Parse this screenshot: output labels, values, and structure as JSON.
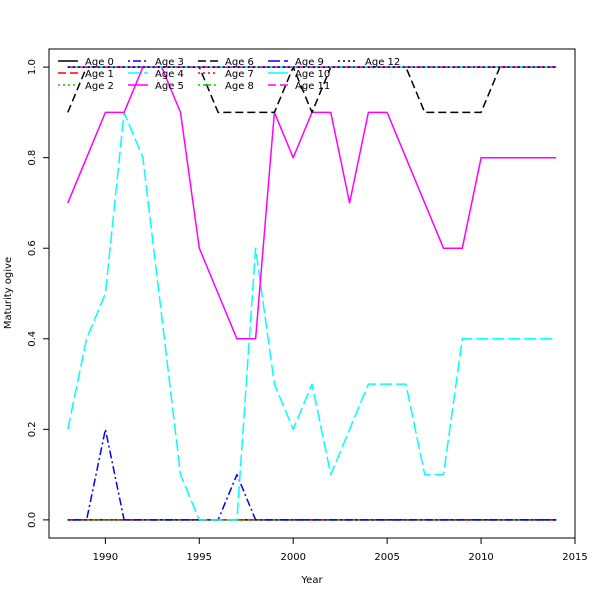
{
  "chart_data": {
    "type": "line",
    "title": "",
    "xlabel": "Year",
    "ylabel": "Maturity ogive",
    "xlim": [
      1987,
      2015
    ],
    "ylim": [
      -0.04,
      1.04
    ],
    "x_ticks": [
      1990,
      1995,
      2000,
      2005,
      2010,
      2015
    ],
    "y_ticks": [
      0.0,
      0.2,
      0.4,
      0.6,
      0.8,
      1.0
    ],
    "legend_position": "top-left",
    "grid": false,
    "x": [
      1988,
      1989,
      1990,
      1991,
      1992,
      1993,
      1994,
      1995,
      1996,
      1997,
      1998,
      1999,
      2000,
      2001,
      2002,
      2003,
      2004,
      2005,
      2006,
      2007,
      2008,
      2009,
      2010,
      2011,
      2012,
      2013,
      2014
    ],
    "series": [
      {
        "name": "Age 0",
        "color": "#000000",
        "dash": "solid",
        "values": [
          0,
          0,
          0,
          0,
          0,
          0,
          0,
          0,
          0,
          0,
          0,
          0,
          0,
          0,
          0,
          0,
          0,
          0,
          0,
          0,
          0,
          0,
          0,
          0,
          0,
          0,
          0
        ]
      },
      {
        "name": "Age 1",
        "color": "#ff0000",
        "dash": "dashed",
        "values": [
          0,
          0,
          0,
          0,
          0,
          0,
          0,
          0,
          0,
          0,
          0,
          0,
          0,
          0,
          0,
          0,
          0,
          0,
          0,
          0,
          0,
          0,
          0,
          0,
          0,
          0,
          0
        ]
      },
      {
        "name": "Age 2",
        "color": "#00cd00",
        "dash": "dotted",
        "values": [
          0,
          0,
          0,
          0,
          0,
          0,
          0,
          0,
          0,
          0,
          0,
          0,
          0,
          0,
          0,
          0,
          0,
          0,
          0,
          0,
          0,
          0,
          0,
          0,
          0,
          0,
          0
        ]
      },
      {
        "name": "Age 3",
        "color": "#0000ff",
        "dash": "dotdash",
        "values": [
          0,
          0,
          0.2,
          0,
          0,
          0,
          0,
          0,
          0,
          0.1,
          0,
          0,
          0,
          0,
          0,
          0,
          0,
          0,
          0,
          0,
          0,
          0,
          0,
          0,
          0,
          0,
          0
        ]
      },
      {
        "name": "Age 4",
        "color": "#00ffff",
        "dash": "longdash",
        "values": [
          0.2,
          0.4,
          0.5,
          0.9,
          0.8,
          0.45,
          0.1,
          0,
          0,
          0,
          0.6,
          0.3,
          0.2,
          0.3,
          0.1,
          0.2,
          0.3,
          0.3,
          0.3,
          0.1,
          0.1,
          0.4,
          0.4,
          0.4,
          0.4,
          0.4,
          0.4
        ]
      },
      {
        "name": "Age 5",
        "color": "#ff00ff",
        "dash": "solid",
        "values": [
          0.7,
          0.8,
          0.9,
          0.9,
          1.0,
          1.0,
          0.9,
          0.6,
          0.5,
          0.4,
          0.4,
          0.9,
          0.8,
          0.9,
          0.9,
          0.7,
          0.9,
          0.9,
          0.8,
          0.7,
          0.6,
          0.6,
          0.8,
          0.8,
          0.8,
          0.8,
          0.8
        ]
      },
      {
        "name": "Age 6",
        "color": "#000000",
        "dash": "dashed",
        "values": [
          0.9,
          1.0,
          1.0,
          1.0,
          1.0,
          1.0,
          1.0,
          1.0,
          0.9,
          0.9,
          0.9,
          0.9,
          1.0,
          0.9,
          1.0,
          1.0,
          1.0,
          1.0,
          1.0,
          0.9,
          0.9,
          0.9,
          0.9,
          1.0,
          1.0,
          1.0,
          1.0
        ]
      },
      {
        "name": "Age 7",
        "color": "#ff0000",
        "dash": "dotted",
        "values": [
          1,
          1,
          1,
          1,
          1,
          1,
          1,
          1,
          1,
          1,
          1,
          1,
          1,
          1,
          1,
          1,
          1,
          1,
          1,
          1,
          1,
          1,
          1,
          1,
          1,
          1,
          1
        ]
      },
      {
        "name": "Age 8",
        "color": "#00cd00",
        "dash": "dotdash",
        "values": [
          1,
          1,
          1,
          1,
          1,
          1,
          1,
          1,
          1,
          1,
          1,
          1,
          1,
          1,
          1,
          1,
          1,
          1,
          1,
          1,
          1,
          1,
          1,
          1,
          1,
          1,
          1
        ]
      },
      {
        "name": "Age 9",
        "color": "#0000ff",
        "dash": "longdash",
        "values": [
          1,
          1,
          1,
          1,
          1,
          1,
          1,
          1,
          1,
          1,
          1,
          1,
          1,
          1,
          1,
          1,
          1,
          1,
          1,
          1,
          1,
          1,
          1,
          1,
          1,
          1,
          1
        ]
      },
      {
        "name": "Age 10",
        "color": "#00ffff",
        "dash": "solid",
        "values": [
          1,
          1,
          1,
          1,
          1,
          1,
          1,
          1,
          1,
          1,
          1,
          1,
          1,
          1,
          1,
          1,
          1,
          1,
          1,
          1,
          1,
          1,
          1,
          1,
          1,
          1,
          1
        ]
      },
      {
        "name": "Age 11",
        "color": "#ff00ff",
        "dash": "dashed",
        "values": [
          1,
          1,
          1,
          1,
          1,
          1,
          1,
          1,
          1,
          1,
          1,
          1,
          1,
          1,
          1,
          1,
          1,
          1,
          1,
          1,
          1,
          1,
          1,
          1,
          1,
          1,
          1
        ]
      },
      {
        "name": "Age 12",
        "color": "#000000",
        "dash": "dotted",
        "values": [
          1,
          1,
          1,
          1,
          1,
          1,
          1,
          1,
          1,
          1,
          1,
          1,
          1,
          1,
          1,
          1,
          1,
          1,
          1,
          1,
          1,
          1,
          1,
          1,
          1,
          1,
          1
        ]
      }
    ]
  }
}
